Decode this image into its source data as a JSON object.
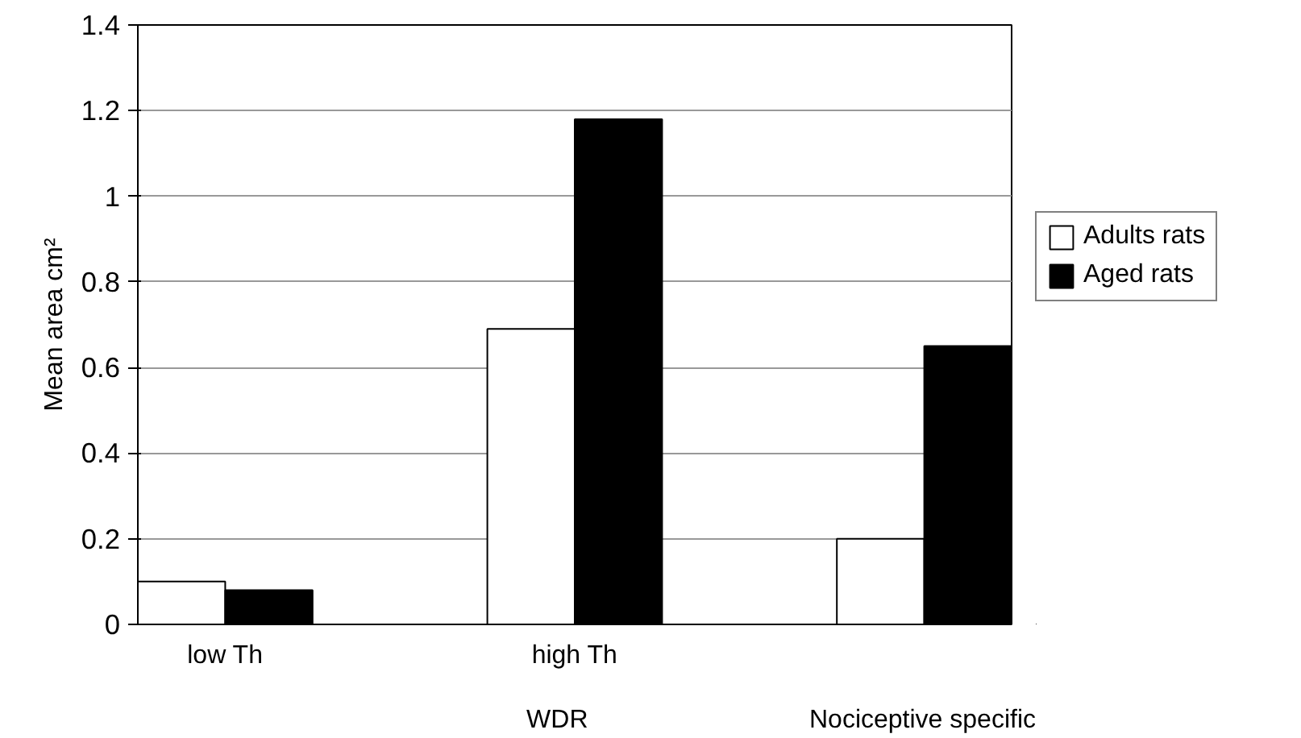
{
  "chart_data": {
    "type": "bar",
    "ylabel": "Mean area cm²",
    "categories": [
      "low Th",
      null,
      "high Th",
      null,
      null
    ],
    "series": [
      {
        "name": "Adults rats",
        "color": "#ffffff",
        "values": [
          0.1,
          null,
          0.69,
          null,
          0.2
        ]
      },
      {
        "name": "Aged rats",
        "color": "#000000",
        "values": [
          0.08,
          null,
          1.18,
          null,
          0.65
        ]
      }
    ],
    "annotations": [
      "WDR",
      "Nociceptive specific"
    ],
    "ylim": [
      0,
      1.4
    ],
    "yticks": [
      0,
      0.2,
      0.4,
      0.6,
      0.8,
      {
        "value": 1,
        "label": "1"
      },
      1.2,
      1.4
    ],
    "grid": "y",
    "legend": "right"
  }
}
